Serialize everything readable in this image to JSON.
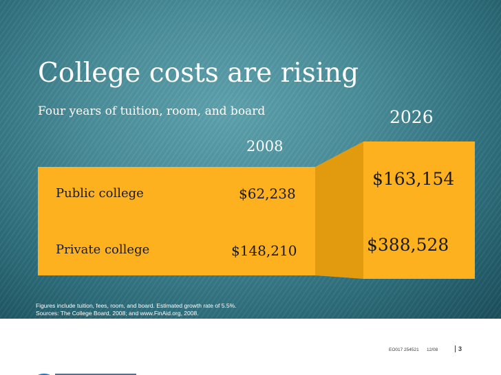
{
  "slide": {
    "title": "College costs are rising",
    "subtitle": "Four years of tuition, room, and board",
    "year_2008": "2008",
    "year_2026": "2026",
    "rows": [
      {
        "label": "Public college",
        "value_2008": "$62,238",
        "value_2026": "$163,154"
      },
      {
        "label": "Private college",
        "value_2008": "$148,210",
        "value_2026": "$388,528"
      }
    ],
    "note_line1": "Figures include tuition, fees, room, and board. Estimated growth rate of 5.5%.",
    "note_line2": "Sources: The College Board, 2008; and www.FinAid.org, 2008."
  },
  "footer": {
    "code": "EO017   254521",
    "date": "12/08",
    "page": "3"
  },
  "colors": {
    "accent_orange": "#fdb11e",
    "connector_orange": "#e29a0e",
    "background_teal": "#4a8e9a"
  },
  "logo": {
    "name": "putnam-logo-icon"
  }
}
